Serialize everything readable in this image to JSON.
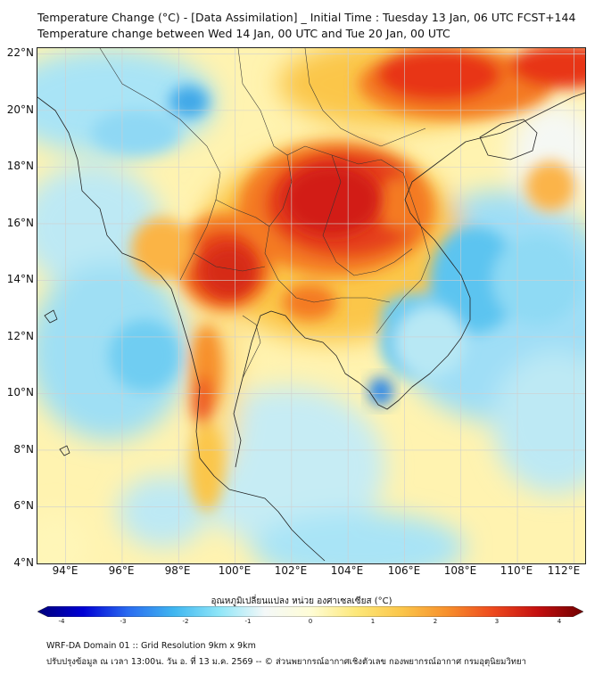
{
  "title": {
    "line1": "Temperature Change (°C) - [Data Assimilation] _ Initial Time : Tuesday 13 Jan, 06 UTC FCST+144",
    "line2": "Temperature change between Wed 14 Jan, 00 UTC and Tue 20 Jan, 00 UTC"
  },
  "map": {
    "lat_labels": [
      "22°N",
      "20°N",
      "18°N",
      "16°N",
      "14°N",
      "12°N",
      "10°N",
      "8°N",
      "6°N",
      "4°N"
    ],
    "lon_labels": [
      "94°E",
      "96°E",
      "98°E",
      "100°E",
      "102°E",
      "104°E",
      "106°E",
      "108°E",
      "110°E",
      "112°E"
    ],
    "lat_range": [
      4,
      22.2
    ],
    "lon_range": [
      93,
      112.4
    ],
    "field": "temperature change",
    "hotspots": [
      {
        "lon": 103.4,
        "lat": 16.8,
        "value": 3.2
      },
      {
        "lon": 99.6,
        "lat": 14.6,
        "value": 3.0
      },
      {
        "lon": 108.5,
        "lat": 21.8,
        "value": 3.2
      },
      {
        "lon": 103.5,
        "lat": 12.9,
        "value": 2.5
      },
      {
        "lon": 98.6,
        "lat": 10.5,
        "value": 2.3
      },
      {
        "lon": 110.6,
        "lat": 17.3,
        "value": 1.8
      },
      {
        "lon": 105.3,
        "lat": 9.9,
        "value": -2.5
      },
      {
        "lon": 106.5,
        "lat": 12.5,
        "value": -1.8
      },
      {
        "lon": 97.6,
        "lat": 21.0,
        "value": -2.0
      },
      {
        "lon": 95.5,
        "lat": 12.0,
        "value": -1.6
      }
    ]
  },
  "colorbar": {
    "title": "อุณหภูมิเปลี่ยนแปลง หน่วย องศาเซลเซียส (°C)",
    "min": -4,
    "max": 4,
    "ticks": [
      "-4",
      "-3",
      "-2",
      "-1",
      "0",
      "1",
      "2",
      "3",
      "4"
    ],
    "stops": [
      "#00007a",
      "#0000d4",
      "#2a6cf0",
      "#3fb6f0",
      "#8fe6f8",
      "#f4f8f8",
      "#fffdd6",
      "#fde87a",
      "#fbc64a",
      "#f7902c",
      "#ee4a1e",
      "#c40f0f",
      "#700000"
    ]
  },
  "footer": {
    "line1": "WRF-DA Domain 01 :: Grid Resolution 9km x 9km",
    "line2": "ปรับปรุงข้อมูล ณ เวลา 13:00น. วัน อ. ที่ 13 ม.ค. 2569 -- © ส่วนพยากรณ์อากาศเชิงตัวเลข กองพยากรณ์อากาศ กรมอุตุนิยมวิทยา"
  }
}
